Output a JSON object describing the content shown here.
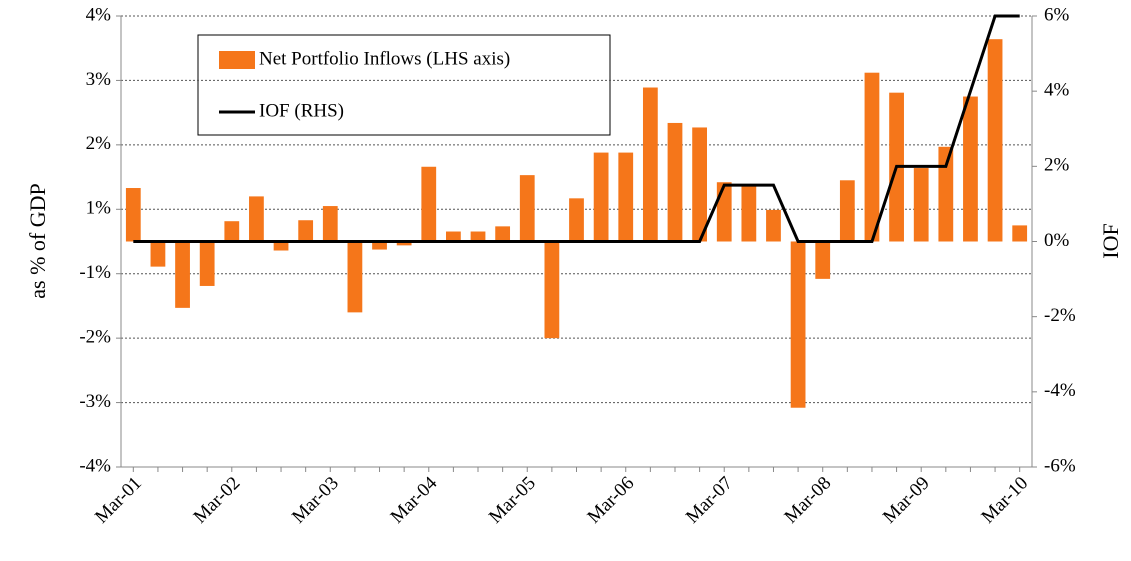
{
  "chart_data": {
    "type": "bar",
    "legend_series_names": null,
    "categories": [
      "Mar-01",
      null,
      null,
      null,
      "Mar-02",
      null,
      null,
      null,
      "Mar-03",
      null,
      null,
      null,
      "Mar-04",
      null,
      null,
      null,
      "Mar-05",
      null,
      null,
      null,
      "Mar-06",
      null,
      null,
      null,
      "Mar-07",
      null,
      null,
      null,
      "Mar-08",
      null,
      null,
      null,
      "Mar-09",
      null,
      null,
      null,
      "Mar-10"
    ],
    "series": [
      {
        "name": "Net Portfolio Inflows (LHS axis)",
        "color": "#f5761a",
        "type": "bar",
        "values": [
          1.33,
          -0.78,
          -1.53,
          -1.19,
          0.63,
          1.2,
          -0.28,
          0.66,
          1.05,
          -1.6,
          -0.25,
          -0.12,
          1.66,
          0.31,
          0.31,
          0.47,
          1.53,
          -2.0,
          1.17,
          1.88,
          1.88,
          2.89,
          2.34,
          2.27,
          1.42,
          1.36,
          0.98,
          -3.08,
          -1.08,
          1.45,
          3.12,
          2.81,
          1.64,
          1.97,
          2.75,
          3.64,
          0.5
        ]
      },
      {
        "name": "IOF (RHS)",
        "color": "#000000",
        "type": "line",
        "axis": "y2",
        "values": [
          0,
          0,
          0,
          0,
          0,
          0,
          0,
          0,
          0,
          0,
          0,
          0,
          0,
          0,
          0,
          0,
          0,
          0,
          0,
          0,
          0,
          0,
          0,
          0,
          1.5,
          1.5,
          1.5,
          0,
          0,
          0,
          0,
          2,
          2,
          2,
          4,
          6,
          6
        ]
      }
    ],
    "ylabel": "as % of GDP",
    "y2label": "IOF",
    "ylim": [
      -4,
      4
    ],
    "yticks": [
      {
        "value": 4,
        "label": "4%"
      },
      {
        "value": 3,
        "label": "3%"
      },
      {
        "value": 2,
        "label": "2%"
      },
      {
        "value": 1,
        "label": "1%"
      },
      {
        "value": -1,
        "label": "-1%"
      },
      {
        "value": -2,
        "label": "-2%"
      },
      {
        "value": -3,
        "label": "-3%"
      },
      {
        "value": -4,
        "label": "-4%"
      }
    ],
    "y2lim": [
      -6,
      6
    ],
    "y2ticks": [
      {
        "value": 6,
        "label": "6%"
      },
      {
        "value": 4,
        "label": "4%"
      },
      {
        "value": 2,
        "label": "2%"
      },
      {
        "value": 0,
        "label": "0%"
      },
      {
        "value": -2,
        "label": "-2%"
      },
      {
        "value": -4,
        "label": "-4%"
      },
      {
        "value": -6,
        "label": "-6%"
      }
    ],
    "grid": true
  }
}
